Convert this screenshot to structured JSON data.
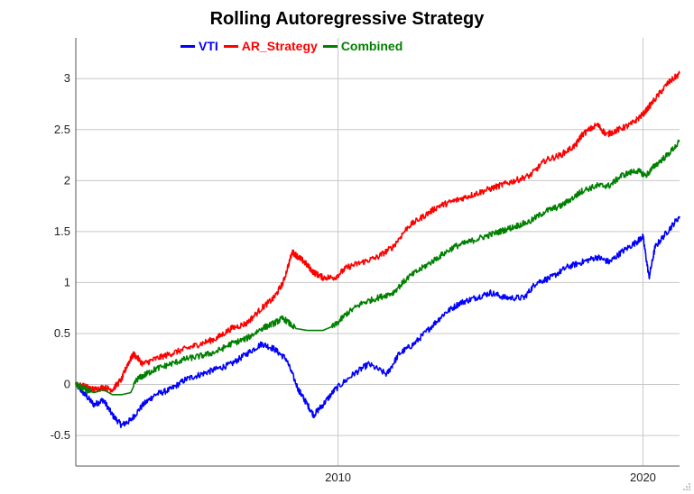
{
  "chart_data": {
    "type": "line",
    "title": "Rolling Autoregressive Strategy",
    "xlabel": "",
    "ylabel": "",
    "xlim": [
      2001.4,
      2021.2
    ],
    "ylim": [
      -0.8,
      3.4
    ],
    "x_ticks": [
      2010,
      2020
    ],
    "x_tick_labels": [
      "2010",
      "2020"
    ],
    "y_ticks": [
      -0.5,
      0,
      0.5,
      1,
      1.5,
      2,
      2.5,
      3
    ],
    "y_tick_labels": [
      "-0.5",
      "0",
      "0.5",
      "1",
      "1.5",
      "2",
      "2.5",
      "3"
    ],
    "grid": true,
    "legend_position": "top-center",
    "series": [
      {
        "name": "VTI",
        "color": "#0000ff",
        "x": [
          2001.4,
          2001.7,
          2002.0,
          2002.3,
          2002.6,
          2002.9,
          2003.2,
          2003.6,
          2004.0,
          2004.5,
          2005.0,
          2005.5,
          2006.0,
          2006.5,
          2007.0,
          2007.5,
          2007.9,
          2008.3,
          2008.7,
          2008.9,
          2009.2,
          2009.5,
          2009.9,
          2010.5,
          2011.0,
          2011.6,
          2012.0,
          2012.5,
          2013.0,
          2013.5,
          2014.0,
          2014.5,
          2015.0,
          2015.5,
          2016.1,
          2016.5,
          2017.0,
          2017.5,
          2018.0,
          2018.5,
          2018.9,
          2019.3,
          2019.8,
          2020.0,
          2020.2,
          2020.4,
          2020.8,
          2021.2
        ],
        "values": [
          0.0,
          -0.1,
          -0.2,
          -0.15,
          -0.3,
          -0.4,
          -0.35,
          -0.2,
          -0.1,
          -0.05,
          0.05,
          0.1,
          0.15,
          0.2,
          0.3,
          0.4,
          0.35,
          0.25,
          -0.05,
          -0.15,
          -0.3,
          -0.2,
          -0.05,
          0.1,
          0.2,
          0.1,
          0.3,
          0.4,
          0.55,
          0.7,
          0.8,
          0.85,
          0.9,
          0.85,
          0.85,
          1.0,
          1.05,
          1.15,
          1.2,
          1.25,
          1.2,
          1.3,
          1.4,
          1.45,
          1.05,
          1.35,
          1.5,
          1.65
        ]
      },
      {
        "name": "AR_Strategy",
        "color": "#ff0000",
        "x": [
          2001.4,
          2001.7,
          2002.0,
          2002.3,
          2002.6,
          2002.9,
          2003.1,
          2003.3,
          2003.6,
          2004.0,
          2004.5,
          2005.0,
          2005.5,
          2006.0,
          2006.5,
          2007.0,
          2007.5,
          2007.9,
          2008.2,
          2008.5,
          2008.7,
          2008.9,
          2009.2,
          2009.5,
          2009.9,
          2010.3,
          2010.8,
          2011.3,
          2011.8,
          2012.3,
          2012.8,
          2013.3,
          2013.8,
          2014.3,
          2014.8,
          2015.3,
          2015.8,
          2016.3,
          2016.8,
          2017.3,
          2017.8,
          2018.0,
          2018.5,
          2018.8,
          2019.2,
          2019.6,
          2020.0,
          2020.4,
          2020.8,
          2021.2
        ],
        "values": [
          0.0,
          -0.02,
          -0.05,
          -0.03,
          -0.05,
          0.05,
          0.2,
          0.3,
          0.2,
          0.25,
          0.3,
          0.35,
          0.4,
          0.45,
          0.55,
          0.6,
          0.75,
          0.85,
          1.0,
          1.3,
          1.25,
          1.2,
          1.1,
          1.05,
          1.05,
          1.15,
          1.2,
          1.25,
          1.35,
          1.55,
          1.65,
          1.75,
          1.8,
          1.85,
          1.9,
          1.95,
          2.0,
          2.05,
          2.2,
          2.25,
          2.35,
          2.45,
          2.55,
          2.45,
          2.5,
          2.55,
          2.65,
          2.8,
          2.95,
          3.05
        ]
      },
      {
        "name": "Combined",
        "color": "#008000",
        "x": [
          2001.4,
          2001.7,
          2002.0,
          2002.3,
          2002.6,
          2002.9,
          2003.2,
          2003.4,
          2003.7,
          2004.0,
          2004.5,
          2005.0,
          2005.5,
          2006.0,
          2006.5,
          2007.0,
          2007.5,
          2007.9,
          2008.2,
          2008.6,
          2009.0,
          2009.5,
          2009.9,
          2010.3,
          2010.8,
          2011.3,
          2011.8,
          2012.3,
          2012.8,
          2013.3,
          2013.8,
          2014.3,
          2014.8,
          2015.3,
          2015.8,
          2016.3,
          2016.8,
          2017.3,
          2017.8,
          2018.0,
          2018.5,
          2018.9,
          2019.3,
          2019.8,
          2020.1,
          2020.4,
          2020.8,
          2021.2
        ],
        "values": [
          0.0,
          -0.05,
          -0.08,
          -0.05,
          -0.1,
          -0.1,
          -0.08,
          0.05,
          0.1,
          0.15,
          0.2,
          0.25,
          0.28,
          0.32,
          0.4,
          0.45,
          0.55,
          0.6,
          0.65,
          0.55,
          0.53,
          0.53,
          0.58,
          0.7,
          0.8,
          0.85,
          0.9,
          1.05,
          1.15,
          1.25,
          1.35,
          1.4,
          1.45,
          1.5,
          1.55,
          1.6,
          1.7,
          1.75,
          1.85,
          1.9,
          1.95,
          1.95,
          2.05,
          2.1,
          2.05,
          2.15,
          2.25,
          2.38
        ]
      }
    ]
  }
}
